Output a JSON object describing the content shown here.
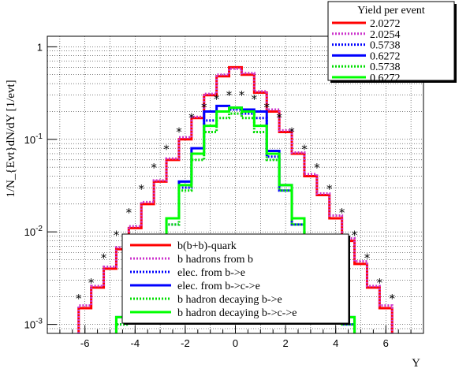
{
  "chart_data": {
    "type": "line",
    "xlabel": "Y",
    "ylabel": "1/N_{Evt}dN/dY [1/evt]",
    "xlim": [
      -7.5,
      7.5
    ],
    "ylim": [
      0.0008,
      1.3
    ],
    "yscale": "log",
    "grid": true,
    "x_ticks": [
      -6,
      -4,
      -2,
      0,
      2,
      4,
      6
    ],
    "y_ticks": [
      {
        "value": 1,
        "label": "1"
      },
      {
        "value": 0.1,
        "label": "10^-1"
      },
      {
        "value": 0.01,
        "label": "10^-2"
      },
      {
        "value": 0.001,
        "label": "10^-3"
      }
    ],
    "yield_box": {
      "title": "Yield per event",
      "entries": [
        {
          "value": "2.0272",
          "color": "#ff0000",
          "style": "solid"
        },
        {
          "value": "2.0254",
          "color": "#cc33cc",
          "style": "dotted"
        },
        {
          "value": "0.5738",
          "color": "#0000ff",
          "style": "dotted"
        },
        {
          "value": "0.6272",
          "color": "#0000ff",
          "style": "solid"
        },
        {
          "value": "0.5738",
          "color": "#00dd00",
          "style": "dotted"
        },
        {
          "value": "0.6272",
          "color": "#00ff00",
          "style": "solid"
        }
      ]
    },
    "legend_placement": "bottom-center",
    "series": [
      {
        "name": "b(b+b)-quark",
        "color": "#ff0000",
        "style": "solid",
        "kind": "step",
        "x": [
          -6.0,
          -5.5,
          -5.0,
          -4.5,
          -4.0,
          -3.5,
          -3.0,
          -2.5,
          -2.0,
          -1.5,
          -1.0,
          -0.5,
          0.0,
          0.5,
          1.0,
          1.5,
          2.0,
          2.5,
          3.0,
          3.5,
          4.0,
          4.5,
          5.0,
          5.5,
          6.0
        ],
        "values": [
          0.0015,
          0.0025,
          0.004,
          0.0065,
          0.011,
          0.02,
          0.035,
          0.06,
          0.1,
          0.17,
          0.3,
          0.48,
          0.6,
          0.5,
          0.32,
          0.2,
          0.12,
          0.07,
          0.04,
          0.025,
          0.014,
          0.008,
          0.0045,
          0.0025,
          0.0015
        ]
      },
      {
        "name": "b hadrons from b",
        "color": "#cc33cc",
        "style": "dotted",
        "kind": "step",
        "x": [
          -6.0,
          -5.5,
          -5.0,
          -4.5,
          -4.0,
          -3.5,
          -3.0,
          -2.5,
          -2.0,
          -1.5,
          -1.0,
          -0.5,
          0.0,
          0.5,
          1.0,
          1.5,
          2.0,
          2.5,
          3.0,
          3.5,
          4.0,
          4.5,
          5.0,
          5.5,
          6.0
        ],
        "values": [
          0.0016,
          0.0026,
          0.0042,
          0.0068,
          0.0115,
          0.021,
          0.036,
          0.062,
          0.105,
          0.175,
          0.31,
          0.5,
          0.58,
          0.52,
          0.33,
          0.21,
          0.125,
          0.072,
          0.042,
          0.026,
          0.015,
          0.0085,
          0.0048,
          0.0026,
          0.0016
        ]
      },
      {
        "name": "elec. from b->e",
        "color": "#0000ff",
        "style": "dotted",
        "kind": "step",
        "x": [
          -4.5,
          -4.0,
          -3.5,
          -3.0,
          -2.5,
          -2.0,
          -1.5,
          -1.0,
          -0.5,
          0.0,
          0.5,
          1.0,
          1.5,
          2.0,
          2.5,
          3.0,
          3.5,
          4.0,
          4.5
        ],
        "values": [
          0.001,
          0.0018,
          0.003,
          0.006,
          0.012,
          0.03,
          0.07,
          0.16,
          0.2,
          0.21,
          0.19,
          0.17,
          0.065,
          0.028,
          0.012,
          0.006,
          0.003,
          0.0018,
          0.001
        ]
      },
      {
        "name": "elec. from b->c->e",
        "color": "#0000ff",
        "style": "solid",
        "kind": "step",
        "x": [
          -4.5,
          -4.0,
          -3.5,
          -3.0,
          -2.5,
          -2.0,
          -1.5,
          -1.0,
          -0.5,
          0.0,
          0.5,
          1.0,
          1.5,
          2.0,
          2.5,
          3.0,
          3.5,
          4.0,
          4.5
        ],
        "values": [
          0.0012,
          0.002,
          0.0035,
          0.007,
          0.014,
          0.035,
          0.08,
          0.2,
          0.23,
          0.22,
          0.21,
          0.2,
          0.075,
          0.032,
          0.014,
          0.007,
          0.0035,
          0.002,
          0.0012
        ]
      },
      {
        "name": "b hadron decaying b->e",
        "color": "#00dd00",
        "style": "dotted",
        "kind": "step",
        "x": [
          -4.5,
          -4.0,
          -3.5,
          -3.0,
          -2.5,
          -2.0,
          -1.5,
          -1.0,
          -0.5,
          0.0,
          0.5,
          1.0,
          1.5,
          2.0,
          2.5,
          3.0,
          3.5,
          4.0,
          4.5
        ],
        "values": [
          0.001,
          0.0018,
          0.0032,
          0.006,
          0.012,
          0.028,
          0.06,
          0.12,
          0.17,
          0.19,
          0.17,
          0.12,
          0.06,
          0.028,
          0.012,
          0.006,
          0.0032,
          0.0018,
          0.001
        ]
      },
      {
        "name": "b hadron decaying b->c->e",
        "color": "#00ff00",
        "style": "solid",
        "kind": "step",
        "x": [
          -4.5,
          -4.0,
          -3.5,
          -3.0,
          -2.5,
          -2.0,
          -1.5,
          -1.0,
          -0.5,
          0.0,
          0.5,
          1.0,
          1.5,
          2.0,
          2.5,
          3.0,
          3.5,
          4.0,
          4.5
        ],
        "values": [
          0.0012,
          0.002,
          0.0036,
          0.007,
          0.014,
          0.032,
          0.07,
          0.14,
          0.2,
          0.22,
          0.2,
          0.14,
          0.07,
          0.032,
          0.014,
          0.007,
          0.0036,
          0.002,
          0.0012
        ]
      },
      {
        "name": "",
        "color": "#000000",
        "style": "marker",
        "kind": "scatter",
        "x": [
          -6.25,
          -5.75,
          -5.25,
          -4.75,
          -4.25,
          -3.75,
          -3.25,
          -2.75,
          -2.25,
          -1.75,
          -1.25,
          -0.75,
          -0.25,
          0.25,
          0.75,
          1.25,
          1.75,
          2.25,
          2.75,
          3.25,
          3.75,
          4.25,
          4.75,
          5.25,
          5.75,
          6.25
        ],
        "values": [
          0.0019,
          0.0028,
          0.0052,
          0.0092,
          0.016,
          0.029,
          0.049,
          0.078,
          0.12,
          0.17,
          0.22,
          0.27,
          0.3,
          0.3,
          0.27,
          0.22,
          0.17,
          0.12,
          0.078,
          0.049,
          0.029,
          0.016,
          0.0092,
          0.0052,
          0.0028,
          0.0019
        ]
      }
    ],
    "legend": [
      {
        "label": "b(b+b)-quark",
        "color": "#ff0000",
        "style": "solid"
      },
      {
        "label": "b hadrons from b",
        "color": "#cc33cc",
        "style": "dotted"
      },
      {
        "label": "elec. from b->e",
        "color": "#0000ff",
        "style": "dotted"
      },
      {
        "label": "elec. from b->c->e",
        "color": "#0000ff",
        "style": "solid"
      },
      {
        "label": "b hadron decaying b->e",
        "color": "#00dd00",
        "style": "dotted"
      },
      {
        "label": "b hadron decaying b->c->e",
        "color": "#00ff00",
        "style": "solid"
      }
    ]
  }
}
